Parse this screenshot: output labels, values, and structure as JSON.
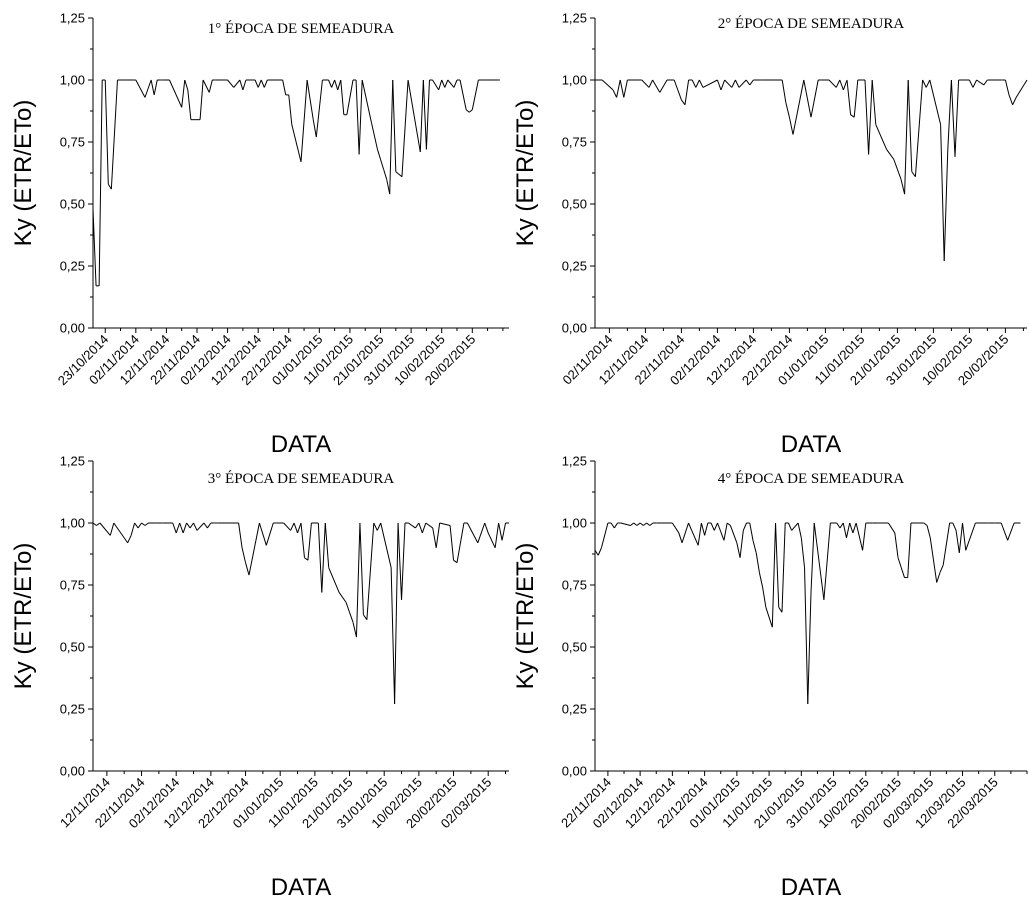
{
  "chart_data": [
    {
      "type": "line",
      "title": "1° ÉPOCA DE SEMEADURA",
      "xlabel": "DATA",
      "ylabel": "Ky (ETR/ETo)",
      "ylim": [
        0,
        1.25
      ],
      "yticks": [
        "0,00",
        "0,25",
        "0,50",
        "0,75",
        "1,00",
        "1,25"
      ],
      "grid": false,
      "x_start": "2014-10-19",
      "x_end": "2015-03-04",
      "xtick_dates": [
        "2014-10-23",
        "2014-11-02",
        "2014-11-12",
        "2014-11-22",
        "2014-12-02",
        "2014-12-12",
        "2014-12-22",
        "2015-01-01",
        "2015-01-11",
        "2015-01-21",
        "2015-01-31",
        "2015-02-10",
        "2015-02-20"
      ],
      "xtick_labels": [
        "23/10/2014",
        "02/11/2014",
        "12/11/2014",
        "22/11/2014",
        "02/12/2014",
        "12/12/2014",
        "22/12/2014",
        "01/01/2015",
        "11/01/2015",
        "21/01/2015",
        "31/01/2015",
        "10/02/2015",
        "20/02/2015"
      ],
      "series": [
        {
          "x": [
            "2014-10-19",
            "2014-10-20",
            "2014-10-21",
            "2014-10-22",
            "2014-10-23",
            "2014-10-24",
            "2014-10-25",
            "2014-10-27",
            "2014-10-28",
            "2014-10-29",
            "2014-11-02",
            "2014-11-05",
            "2014-11-07",
            "2014-11-08",
            "2014-11-09",
            "2014-11-10",
            "2014-11-11",
            "2014-11-13",
            "2014-11-17",
            "2014-11-18",
            "2014-11-19",
            "2014-11-20",
            "2014-11-23",
            "2014-11-24",
            "2014-11-26",
            "2014-11-27",
            "2014-11-28",
            "2014-11-30",
            "2014-12-02",
            "2014-12-04",
            "2014-12-06",
            "2014-12-07",
            "2014-12-08",
            "2014-12-09",
            "2014-12-11",
            "2014-12-12",
            "2014-12-13",
            "2014-12-14",
            "2014-12-15",
            "2014-12-20",
            "2014-12-21",
            "2014-12-22",
            "2014-12-23",
            "2014-12-26",
            "2014-12-28",
            "2014-12-30",
            "2014-12-31",
            "2015-01-02",
            "2015-01-04",
            "2015-01-05",
            "2015-01-06",
            "2015-01-07",
            "2015-01-08",
            "2015-01-09",
            "2015-01-10",
            "2015-01-12",
            "2015-01-13",
            "2015-01-14",
            "2015-01-15",
            "2015-01-18",
            "2015-01-20",
            "2015-01-21",
            "2015-01-22",
            "2015-01-23",
            "2015-01-24",
            "2015-01-25",
            "2015-01-26",
            "2015-01-28",
            "2015-01-30",
            "2015-02-03",
            "2015-02-04",
            "2015-02-05",
            "2015-02-06",
            "2015-02-07",
            "2015-02-09",
            "2015-02-10",
            "2015-02-11",
            "2015-02-12",
            "2015-02-14",
            "2015-02-15",
            "2015-02-16",
            "2015-02-18",
            "2015-02-19",
            "2015-02-20",
            "2015-02-22",
            "2015-02-23",
            "2015-02-24",
            "2015-02-25",
            "2015-03-01"
          ],
          "values": [
            0.48,
            0.17,
            0.17,
            1.0,
            1.0,
            0.58,
            0.56,
            1.0,
            1.0,
            1.0,
            1.0,
            0.93,
            1.0,
            0.94,
            1.0,
            1.0,
            1.0,
            1.0,
            0.89,
            1.0,
            0.96,
            0.84,
            0.84,
            1.0,
            0.95,
            1.0,
            1.0,
            1.0,
            1.0,
            0.97,
            1.0,
            0.96,
            1.0,
            1.0,
            1.0,
            0.97,
            1.0,
            0.97,
            1.0,
            1.0,
            0.94,
            0.94,
            0.82,
            0.67,
            1.0,
            0.84,
            0.77,
            1.0,
            1.0,
            0.97,
            1.0,
            0.96,
            1.0,
            0.86,
            0.86,
            1.0,
            1.0,
            0.7,
            1.0,
            0.83,
            0.72,
            0.68,
            0.64,
            0.6,
            0.54,
            1.0,
            0.63,
            0.61,
            1.0,
            0.71,
            1.0,
            0.72,
            1.0,
            1.0,
            0.96,
            1.0,
            0.97,
            1.0,
            0.97,
            1.0,
            1.0,
            0.88,
            0.87,
            0.88,
            1.0,
            1.0,
            1.0,
            1.0,
            1.0
          ]
        }
      ]
    },
    {
      "type": "line",
      "title": "2° ÉPOCA DE SEMEADURA",
      "xlabel": "DATA",
      "ylabel": "Ky (ETR/ETo)",
      "ylim": [
        0,
        1.25
      ],
      "yticks": [
        "0,00",
        "0,25",
        "0,50",
        "0,75",
        "1,00",
        "1,25"
      ],
      "grid": false,
      "x_start": "2014-10-29",
      "x_end": "2015-02-26",
      "xtick_dates": [
        "2014-11-02",
        "2014-11-12",
        "2014-11-22",
        "2014-12-02",
        "2014-12-12",
        "2014-12-22",
        "2015-01-01",
        "2015-01-11",
        "2015-01-21",
        "2015-01-31",
        "2015-02-10",
        "2015-02-20"
      ],
      "xtick_labels": [
        "02/11/2014",
        "12/11/2014",
        "22/11/2014",
        "02/12/2014",
        "12/12/2014",
        "22/12/2014",
        "01/01/2015",
        "11/01/2015",
        "21/01/2015",
        "31/01/2015",
        "10/02/2015",
        "20/02/2015"
      ],
      "series": [
        {
          "x": [
            "2014-10-29",
            "2014-10-31",
            "2014-11-03",
            "2014-11-04",
            "2014-11-05",
            "2014-11-06",
            "2014-11-07",
            "2014-11-11",
            "2014-11-13",
            "2014-11-14",
            "2014-11-16",
            "2014-11-18",
            "2014-11-20",
            "2014-11-22",
            "2014-11-23",
            "2014-11-24",
            "2014-11-25",
            "2014-11-26",
            "2014-11-27",
            "2014-11-28",
            "2014-12-02",
            "2014-12-03",
            "2014-12-04",
            "2014-12-06",
            "2014-12-07",
            "2014-12-08",
            "2014-12-10",
            "2014-12-11",
            "2014-12-12",
            "2014-12-13",
            "2014-12-14",
            "2014-12-20",
            "2014-12-21",
            "2014-12-22",
            "2014-12-23",
            "2014-12-26",
            "2014-12-28",
            "2014-12-30",
            "2014-12-31",
            "2015-01-02",
            "2015-01-04",
            "2015-01-05",
            "2015-01-06",
            "2015-01-07",
            "2015-01-08",
            "2015-01-09",
            "2015-01-10",
            "2015-01-12",
            "2015-01-13",
            "2015-01-14",
            "2015-01-15",
            "2015-01-18",
            "2015-01-20",
            "2015-01-21",
            "2015-01-22",
            "2015-01-23",
            "2015-01-24",
            "2015-01-25",
            "2015-01-26",
            "2015-01-28",
            "2015-01-29",
            "2015-01-30",
            "2015-02-02",
            "2015-02-03",
            "2015-02-04",
            "2015-02-05",
            "2015-02-06",
            "2015-02-07",
            "2015-02-09",
            "2015-02-10",
            "2015-02-11",
            "2015-02-12",
            "2015-02-14",
            "2015-02-15",
            "2015-02-16",
            "2015-02-19",
            "2015-02-20",
            "2015-02-21",
            "2015-02-22",
            "2015-02-23",
            "2015-02-26"
          ],
          "values": [
            1.0,
            1.0,
            0.96,
            0.93,
            1.0,
            0.93,
            1.0,
            1.0,
            0.97,
            1.0,
            0.95,
            1.0,
            1.0,
            0.92,
            0.9,
            1.0,
            1.0,
            0.97,
            1.0,
            0.97,
            1.0,
            0.96,
            1.0,
            0.97,
            1.0,
            0.97,
            1.0,
            0.98,
            1.0,
            1.0,
            1.0,
            1.0,
            0.91,
            0.85,
            0.78,
            1.0,
            0.85,
            1.0,
            1.0,
            1.0,
            0.97,
            1.0,
            0.96,
            1.0,
            0.86,
            0.85,
            1.0,
            1.0,
            0.7,
            1.0,
            0.82,
            0.72,
            0.68,
            0.64,
            0.6,
            0.54,
            1.0,
            0.63,
            0.61,
            1.0,
            0.97,
            1.0,
            0.82,
            0.27,
            0.72,
            1.0,
            0.69,
            1.0,
            1.0,
            1.0,
            0.97,
            1.0,
            0.98,
            1.0,
            1.0,
            1.0,
            1.0,
            0.94,
            0.9,
            0.93,
            1.0
          ]
        }
      ]
    },
    {
      "type": "line",
      "title": "3° ÉPOCA DE SEMEADURA",
      "xlabel": "DATA",
      "ylabel": "Ky (ETR/ETo)",
      "ylim": [
        0,
        1.25
      ],
      "yticks": [
        "0,00",
        "0,25",
        "0,50",
        "0,75",
        "1,00",
        "1,25"
      ],
      "grid": false,
      "x_start": "2014-11-08",
      "x_end": "2015-03-08",
      "xtick_dates": [
        "2014-11-12",
        "2014-11-22",
        "2014-12-02",
        "2014-12-12",
        "2014-12-22",
        "2015-01-01",
        "2015-01-11",
        "2015-01-21",
        "2015-01-31",
        "2015-02-10",
        "2015-02-20",
        "2015-03-02"
      ],
      "xtick_labels": [
        "12/11/2014",
        "22/11/2014",
        "02/12/2014",
        "12/12/2014",
        "22/12/2014",
        "01/01/2015",
        "11/01/2015",
        "21/01/2015",
        "31/01/2015",
        "10/02/2015",
        "20/02/2015",
        "02/03/2015"
      ],
      "series": [
        {
          "x": [
            "2014-11-08",
            "2014-11-09",
            "2014-11-10",
            "2014-11-13",
            "2014-11-14",
            "2014-11-17",
            "2014-11-18",
            "2014-11-19",
            "2014-11-20",
            "2014-11-21",
            "2014-11-22",
            "2014-11-23",
            "2014-11-24",
            "2014-11-26",
            "2014-11-28",
            "2014-12-01",
            "2014-12-02",
            "2014-12-03",
            "2014-12-04",
            "2014-12-05",
            "2014-12-06",
            "2014-12-07",
            "2014-12-08",
            "2014-12-10",
            "2014-12-11",
            "2014-12-12",
            "2014-12-13",
            "2014-12-14",
            "2014-12-20",
            "2014-12-21",
            "2014-12-22",
            "2014-12-23",
            "2014-12-26",
            "2014-12-28",
            "2014-12-30",
            "2014-12-31",
            "2015-01-02",
            "2015-01-04",
            "2015-01-05",
            "2015-01-06",
            "2015-01-07",
            "2015-01-08",
            "2015-01-09",
            "2015-01-10",
            "2015-01-12",
            "2015-01-13",
            "2015-01-14",
            "2015-01-15",
            "2015-01-18",
            "2015-01-20",
            "2015-01-21",
            "2015-01-22",
            "2015-01-23",
            "2015-01-24",
            "2015-01-25",
            "2015-01-26",
            "2015-01-28",
            "2015-01-29",
            "2015-01-30",
            "2015-02-02",
            "2015-02-03",
            "2015-02-04",
            "2015-02-05",
            "2015-02-06",
            "2015-02-07",
            "2015-02-09",
            "2015-02-10",
            "2015-02-11",
            "2015-02-12",
            "2015-02-14",
            "2015-02-15",
            "2015-02-16",
            "2015-02-19",
            "2015-02-20",
            "2015-02-21",
            "2015-02-23",
            "2015-02-24",
            "2015-02-27",
            "2015-03-01",
            "2015-03-02",
            "2015-03-04",
            "2015-03-05",
            "2015-03-06",
            "2015-03-07",
            "2015-03-08"
          ],
          "values": [
            1.0,
            0.99,
            1.0,
            0.95,
            1.0,
            0.94,
            0.92,
            0.95,
            1.0,
            0.98,
            1.0,
            0.99,
            1.0,
            1.0,
            1.0,
            1.0,
            0.96,
            1.0,
            0.96,
            1.0,
            0.98,
            1.0,
            0.97,
            1.0,
            0.98,
            1.0,
            1.0,
            1.0,
            1.0,
            0.9,
            0.84,
            0.79,
            1.0,
            0.91,
            1.0,
            1.0,
            1.0,
            0.97,
            1.0,
            0.96,
            1.0,
            0.86,
            0.85,
            1.0,
            1.0,
            0.72,
            1.0,
            0.82,
            0.72,
            0.68,
            0.64,
            0.6,
            0.54,
            1.0,
            0.63,
            0.61,
            1.0,
            0.97,
            1.0,
            0.82,
            0.27,
            1.0,
            0.69,
            1.0,
            1.0,
            0.98,
            1.0,
            0.96,
            1.0,
            0.98,
            0.9,
            1.0,
            0.99,
            0.85,
            0.84,
            1.0,
            1.0,
            0.92,
            1.0,
            0.96,
            0.9,
            1.0,
            0.93,
            1.0,
            1.0
          ]
        }
      ]
    },
    {
      "type": "line",
      "title": "4° ÉPOCA DE SEMEADURA",
      "xlabel": "DATA",
      "ylabel": "Ky (ETR/ETo)",
      "ylim": [
        0,
        1.25
      ],
      "yticks": [
        "0,00",
        "0,25",
        "0,50",
        "0,75",
        "1,00",
        "1,25"
      ],
      "grid": false,
      "x_start": "2014-11-18",
      "x_end": "2015-04-01",
      "xtick_dates": [
        "2014-11-22",
        "2014-12-02",
        "2014-12-12",
        "2014-12-22",
        "2015-01-01",
        "2015-01-11",
        "2015-01-21",
        "2015-01-31",
        "2015-02-10",
        "2015-02-20",
        "2015-03-02",
        "2015-03-12",
        "2015-03-22"
      ],
      "xtick_labels": [
        "22/11/2014",
        "02/12/2014",
        "12/12/2014",
        "22/12/2014",
        "01/01/2015",
        "11/01/2015",
        "21/01/2015",
        "31/01/2015",
        "10/02/2015",
        "20/02/2015",
        "02/03/2015",
        "12/03/2015",
        "22/03/2015"
      ],
      "series": [
        {
          "x": [
            "2014-11-18",
            "2014-11-19",
            "2014-11-20",
            "2014-11-22",
            "2014-11-23",
            "2014-11-24",
            "2014-11-25",
            "2014-11-26",
            "2014-11-29",
            "2014-11-30",
            "2014-12-01",
            "2014-12-02",
            "2014-12-03",
            "2014-12-04",
            "2014-12-05",
            "2014-12-06",
            "2014-12-07",
            "2014-12-12",
            "2014-12-14",
            "2014-12-15",
            "2014-12-17",
            "2014-12-18",
            "2014-12-20",
            "2014-12-21",
            "2014-12-22",
            "2014-12-23",
            "2014-12-24",
            "2014-12-25",
            "2014-12-26",
            "2014-12-28",
            "2014-12-29",
            "2014-12-30",
            "2015-01-01",
            "2015-01-02",
            "2015-01-03",
            "2015-01-04",
            "2015-01-05",
            "2015-01-06",
            "2015-01-07",
            "2015-01-08",
            "2015-01-09",
            "2015-01-10",
            "2015-01-12",
            "2015-01-13",
            "2015-01-14",
            "2015-01-15",
            "2015-01-16",
            "2015-01-17",
            "2015-01-18",
            "2015-01-20",
            "2015-01-21",
            "2015-01-22",
            "2015-01-23",
            "2015-01-24",
            "2015-01-25",
            "2015-01-28",
            "2015-01-30",
            "2015-02-01",
            "2015-02-02",
            "2015-02-03",
            "2015-02-04",
            "2015-02-05",
            "2015-02-06",
            "2015-02-07",
            "2015-02-09",
            "2015-02-10",
            "2015-02-11",
            "2015-02-12",
            "2015-02-14",
            "2015-02-15",
            "2015-02-17",
            "2015-02-19",
            "2015-02-20",
            "2015-02-21",
            "2015-02-22",
            "2015-02-23",
            "2015-02-24",
            "2015-02-26",
            "2015-02-28",
            "2015-03-01",
            "2015-03-02",
            "2015-03-04",
            "2015-03-05",
            "2015-03-06",
            "2015-03-08",
            "2015-03-09",
            "2015-03-10",
            "2015-03-11",
            "2015-03-12",
            "2015-03-13",
            "2015-03-16",
            "2015-03-20",
            "2015-03-22",
            "2015-03-24",
            "2015-03-26",
            "2015-03-28",
            "2015-03-30"
          ],
          "values": [
            0.89,
            0.87,
            0.9,
            1.0,
            1.0,
            0.98,
            1.0,
            1.0,
            0.99,
            1.0,
            0.99,
            1.0,
            0.99,
            1.0,
            0.99,
            1.0,
            1.0,
            1.0,
            0.96,
            0.92,
            1.0,
            0.97,
            0.91,
            1.0,
            0.95,
            1.0,
            1.0,
            0.97,
            1.0,
            0.93,
            1.0,
            0.99,
            0.92,
            0.86,
            0.97,
            1.0,
            1.0,
            0.93,
            0.88,
            0.8,
            0.74,
            0.66,
            0.58,
            1.0,
            0.66,
            0.64,
            1.0,
            1.0,
            0.97,
            1.0,
            0.94,
            0.82,
            0.27,
            0.72,
            1.0,
            0.69,
            1.0,
            1.0,
            0.98,
            1.0,
            0.94,
            1.0,
            0.96,
            1.0,
            0.89,
            1.0,
            1.0,
            1.0,
            1.0,
            1.0,
            1.0,
            0.96,
            0.86,
            0.82,
            0.78,
            0.78,
            1.0,
            1.0,
            1.0,
            0.99,
            0.94,
            0.76,
            0.8,
            0.83,
            1.0,
            1.0,
            0.97,
            0.88,
            1.0,
            0.89,
            1.0,
            1.0,
            1.0,
            1.0,
            0.93,
            1.0,
            1.0
          ]
        }
      ]
    }
  ]
}
